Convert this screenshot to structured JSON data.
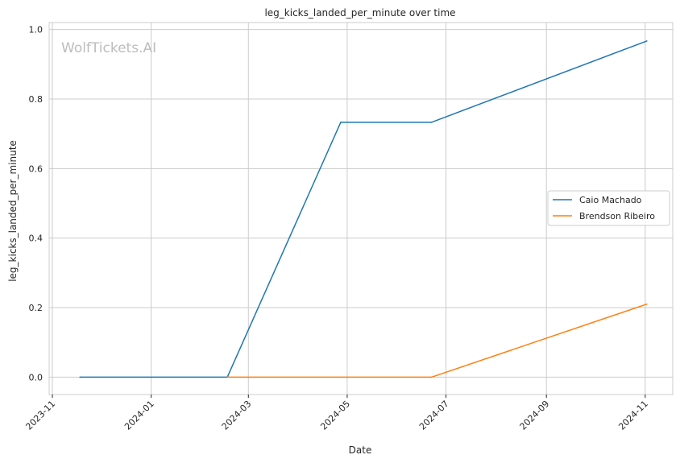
{
  "watermark": "WolfTickets.AI",
  "chart_data": {
    "type": "line",
    "title": "leg_kicks_landed_per_minute over time",
    "xlabel": "Date",
    "ylabel": "leg_kicks_landed_per_minute",
    "xlim": [
      "2023-10-30",
      "2024-11-18"
    ],
    "ylim": [
      -0.05,
      1.02
    ],
    "x_ticks": [
      "2023-11",
      "2024-01",
      "2024-03",
      "2024-05",
      "2024-07",
      "2024-09",
      "2024-11"
    ],
    "y_ticks": [
      "0.0",
      "0.2",
      "0.4",
      "0.6",
      "0.8",
      "1.0"
    ],
    "grid": true,
    "legend": "center-right",
    "series": [
      {
        "name": "Caio Machado",
        "color": "#1f77b4",
        "x": [
          "2023-11-18",
          "2024-02-17",
          "2024-04-27",
          "2024-06-22",
          "2024-11-02"
        ],
        "y": [
          0.0,
          0.0,
          0.733,
          0.733,
          0.967
        ]
      },
      {
        "name": "Brendson Ribeiro",
        "color": "#ff7f0e",
        "x": [
          "2024-02-17",
          "2024-06-22",
          "2024-11-02"
        ],
        "y": [
          0.0,
          0.0,
          0.21
        ]
      }
    ]
  }
}
